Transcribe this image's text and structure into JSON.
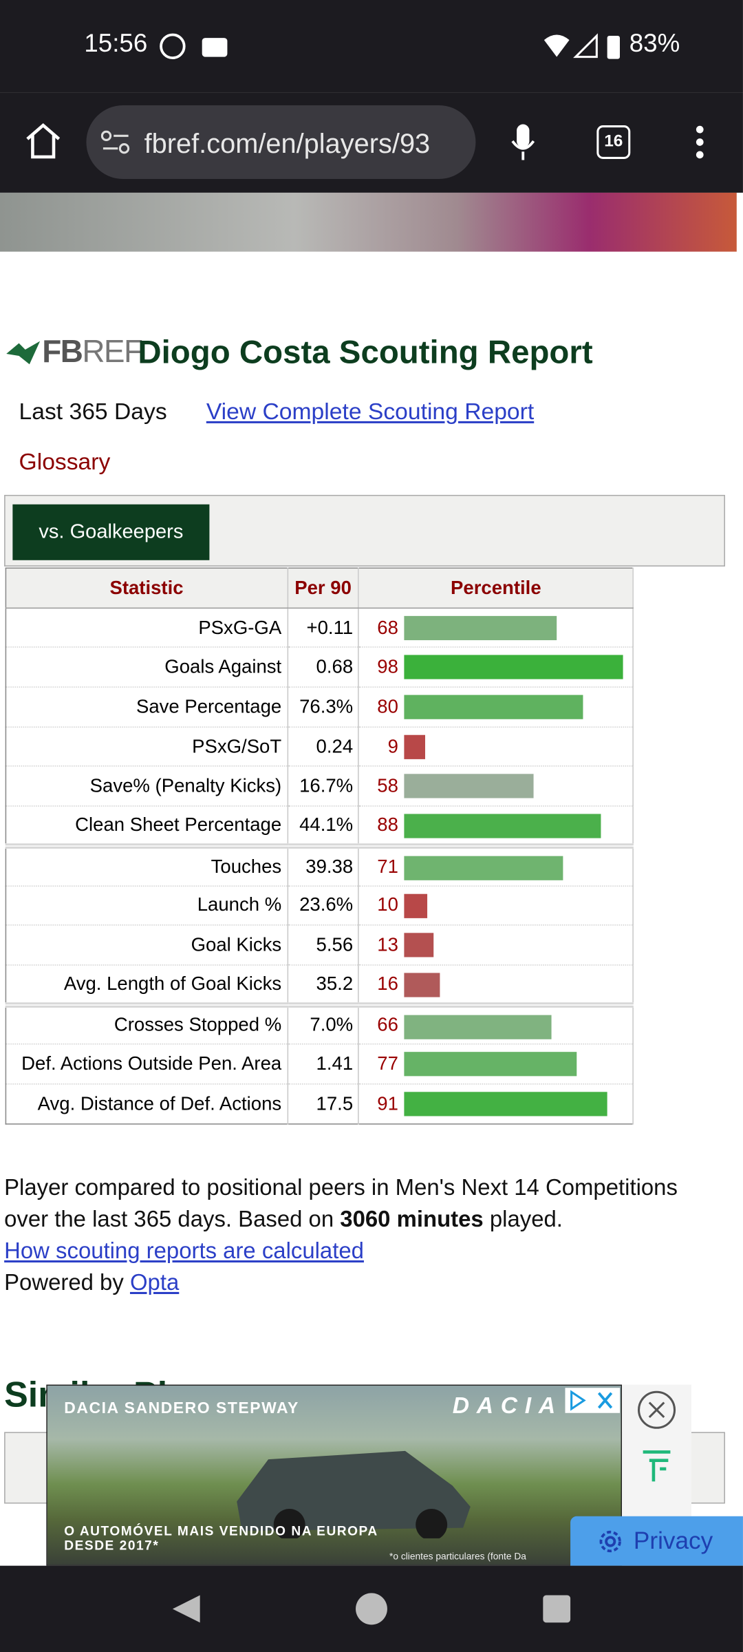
{
  "status_bar": {
    "time": "15:56",
    "battery": "83%"
  },
  "browser": {
    "url": "fbref.com/en/players/93",
    "tab_count": "16"
  },
  "report": {
    "logo_bold": "FB",
    "logo_light": "REF",
    "title": "Diogo Costa Scouting Report",
    "period": "Last 365 Days",
    "complete_link": "View Complete Scouting Report",
    "glossary": "Glossary",
    "tab": "vs. Goalkeepers",
    "table": {
      "headers": [
        "Statistic",
        "Per 90",
        "Percentile"
      ],
      "groups": [
        [
          {
            "stat": "PSxG-GA",
            "per90": "+0.11",
            "percentile": 68,
            "color": "#7db27d"
          },
          {
            "stat": "Goals Against",
            "per90": "0.68",
            "percentile": 98,
            "color": "#3bb13b"
          },
          {
            "stat": "Save Percentage",
            "per90": "76.3%",
            "percentile": 80,
            "color": "#5fb25f"
          },
          {
            "stat": "PSxG/SoT",
            "per90": "0.24",
            "percentile": 9,
            "color": "#b84848"
          },
          {
            "stat": "Save% (Penalty Kicks)",
            "per90": "16.7%",
            "percentile": 58,
            "color": "#9aae9a"
          },
          {
            "stat": "Clean Sheet Percentage",
            "per90": "44.1%",
            "percentile": 88,
            "color": "#4bb04b"
          }
        ],
        [
          {
            "stat": "Touches",
            "per90": "39.38",
            "percentile": 71,
            "color": "#6fb46f"
          },
          {
            "stat": "Launch %",
            "per90": "23.6%",
            "percentile": 10,
            "color": "#b84848"
          },
          {
            "stat": "Goal Kicks",
            "per90": "5.56",
            "percentile": 13,
            "color": "#b45050"
          },
          {
            "stat": "Avg. Length of Goal Kicks",
            "per90": "35.2",
            "percentile": 16,
            "color": "#b05a5a"
          }
        ],
        [
          {
            "stat": "Crosses Stopped %",
            "per90": "7.0%",
            "percentile": 66,
            "color": "#80b380"
          },
          {
            "stat": "Def. Actions Outside Pen. Area",
            "per90": "1.41",
            "percentile": 77,
            "color": "#66b366"
          },
          {
            "stat": "Avg. Distance of Def. Actions",
            "per90": "17.5",
            "percentile": 91,
            "color": "#43b143"
          }
        ]
      ]
    },
    "note": {
      "text": "Player compared to positional peers in Men's Next 14 Competitions over the last 365 days. Based on",
      "minutes": "3060 minutes",
      "end": "played.",
      "method_link": "How scouting reports are calculated",
      "powered_by": "Powered by",
      "opta": "Opta"
    },
    "next_section": "Similar Players"
  },
  "ad": {
    "headline": "DACIA SANDERO STEPWAY",
    "brand": "DACIA",
    "tagline": "O AUTOMÓVEL MAIS VENDIDO NA EUROPA DESDE 2017*",
    "footnote": "*o clientes particulares (fonte Da"
  },
  "privacy": "Privacy"
}
